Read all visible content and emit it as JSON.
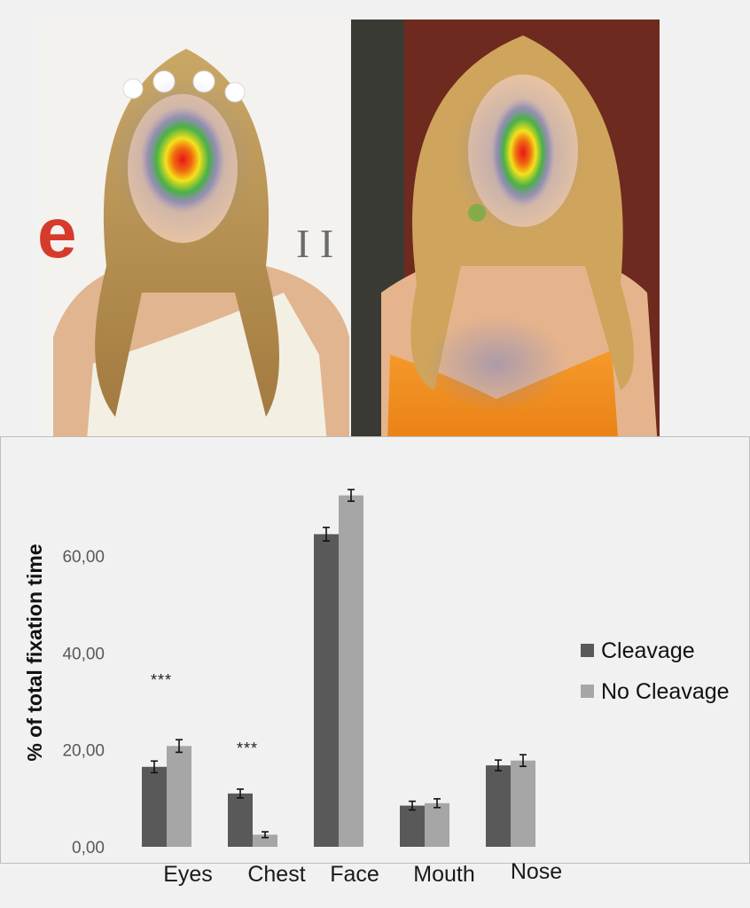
{
  "photos": [
    {
      "name": "left-photo",
      "heatmap": "face"
    },
    {
      "name": "right-photo",
      "heatmap": "face-and-chest"
    }
  ],
  "colors": {
    "cleavage": "#595959",
    "no_cleavage": "#a6a6a6",
    "background": "#f1f1f1"
  },
  "chart_data": {
    "type": "bar",
    "ylabel": "% of total fixation time",
    "xlabel": "",
    "ylim": [
      0,
      75
    ],
    "yticks": [
      "0,00",
      "20,00",
      "40,00",
      "60,00"
    ],
    "categories": [
      "Eyes",
      "Chest",
      "Face",
      "Mouth",
      "Nose"
    ],
    "series": [
      {
        "name": "Cleavage",
        "values": [
          16.5,
          11.0,
          64.5,
          8.5,
          16.8
        ],
        "errors": [
          1.2,
          0.9,
          1.4,
          0.9,
          1.1
        ]
      },
      {
        "name": "No Cleavage",
        "values": [
          20.8,
          2.5,
          72.5,
          9.0,
          17.8
        ],
        "errors": [
          1.3,
          0.6,
          1.2,
          0.9,
          1.2
        ]
      }
    ],
    "annotations": [
      {
        "category": "Eyes",
        "text": "***"
      },
      {
        "category": "Chest",
        "text": "***"
      }
    ],
    "legend": "right"
  }
}
